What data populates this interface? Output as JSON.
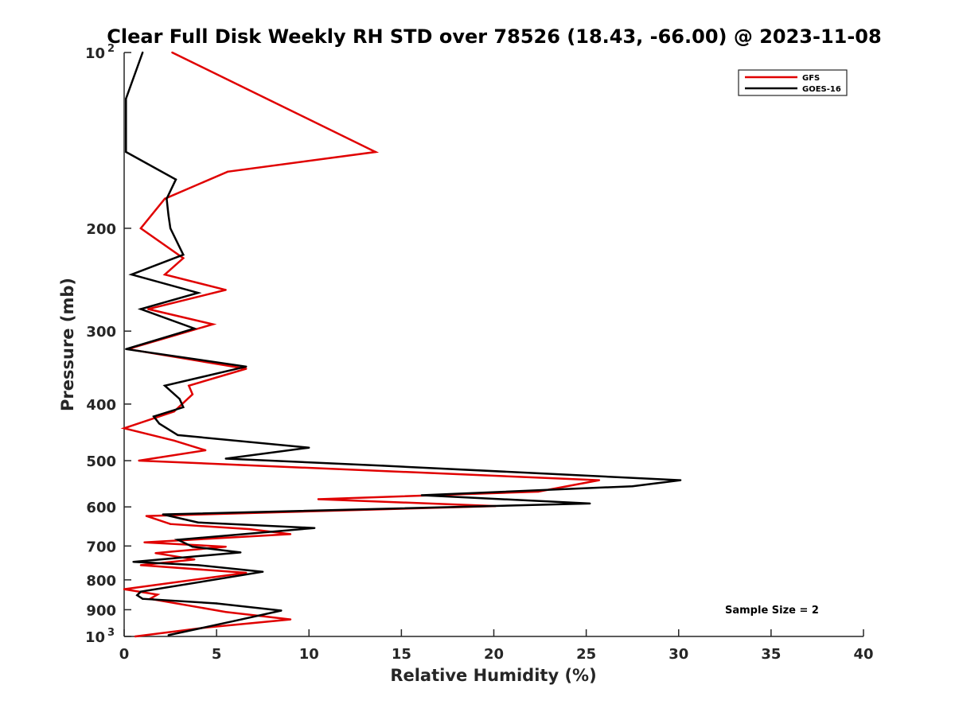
{
  "chart_data": {
    "type": "line",
    "title": "Clear Full Disk Weekly RH STD over 78526 (18.43, -66.00) @ 2023-11-08",
    "xlabel": "Relative Humidity (%)",
    "ylabel": "Pressure (mb)",
    "xlim": [
      0,
      40
    ],
    "ylim": [
      100,
      1000
    ],
    "y_scale": "log",
    "y_reversed": true,
    "x_ticks": [
      "0",
      "5",
      "10",
      "15",
      "20",
      "25",
      "30",
      "35",
      "40"
    ],
    "y_ticks": [
      {
        "value": 100,
        "base": "10",
        "exp": "2"
      },
      {
        "value": 200,
        "label": "200"
      },
      {
        "value": 300,
        "label": "300"
      },
      {
        "value": 400,
        "label": "400"
      },
      {
        "value": 500,
        "label": "500"
      },
      {
        "value": 600,
        "label": "600"
      },
      {
        "value": 700,
        "label": "700"
      },
      {
        "value": 800,
        "label": "800"
      },
      {
        "value": 900,
        "label": "900"
      },
      {
        "value": 1000,
        "base": "10",
        "exp": "3"
      }
    ],
    "legend_position": "top-right",
    "grid": false,
    "series": [
      {
        "name": "GFS",
        "color": "#e00000",
        "x": [
          2.6,
          13.6,
          5.6,
          2.2,
          0.9,
          3.2,
          2.2,
          5.5,
          1.3,
          4.8,
          0.2,
          6.6,
          3.5,
          3.7,
          2.7,
          0.0,
          2.7,
          4.4,
          0.8,
          25.7,
          22.4,
          10.5,
          20.1,
          1.2,
          2.5,
          6.8,
          9.0,
          1.1,
          5.5,
          1.7,
          3.8,
          0.9,
          6.6,
          0.0,
          1.8,
          1.4,
          5.5,
          9.0,
          4.5,
          0.6
        ],
        "y": [
          100,
          148,
          160,
          178,
          200,
          225,
          240,
          255,
          275,
          292,
          322,
          348,
          372,
          385,
          412,
          440,
          462,
          480,
          500,
          540,
          565,
          582,
          598,
          622,
          642,
          655,
          668,
          690,
          702,
          720,
          738,
          755,
          778,
          830,
          848,
          862,
          908,
          935,
          965,
          1000
        ]
      },
      {
        "name": "GOES-16",
        "color": "#000000",
        "x": [
          1.0,
          0.1,
          0.1,
          0.1,
          2.8,
          2.3,
          2.4,
          2.5,
          3.2,
          0.4,
          4.0,
          0.9,
          3.8,
          0.1,
          6.6,
          2.2,
          3.0,
          3.2,
          1.6,
          1.9,
          2.9,
          10.0,
          5.5,
          14.0,
          30.1,
          27.5,
          16.1,
          25.2,
          2.1,
          4.0,
          10.3,
          2.9,
          3.7,
          6.3,
          0.5,
          4.0,
          7.5,
          0.9,
          0.7,
          1.0,
          5.0,
          8.5,
          6.0,
          2.4
        ],
        "y": [
          100,
          120,
          135,
          148,
          165,
          178,
          190,
          200,
          222,
          240,
          258,
          275,
          297,
          322,
          345,
          372,
          392,
          405,
          420,
          432,
          452,
          475,
          496,
          510,
          540,
          553,
          573,
          592,
          618,
          638,
          652,
          683,
          702,
          718,
          745,
          755,
          775,
          838,
          850,
          862,
          878,
          903,
          940,
          995
        ]
      }
    ],
    "annotation": "Sample Size = 2"
  }
}
